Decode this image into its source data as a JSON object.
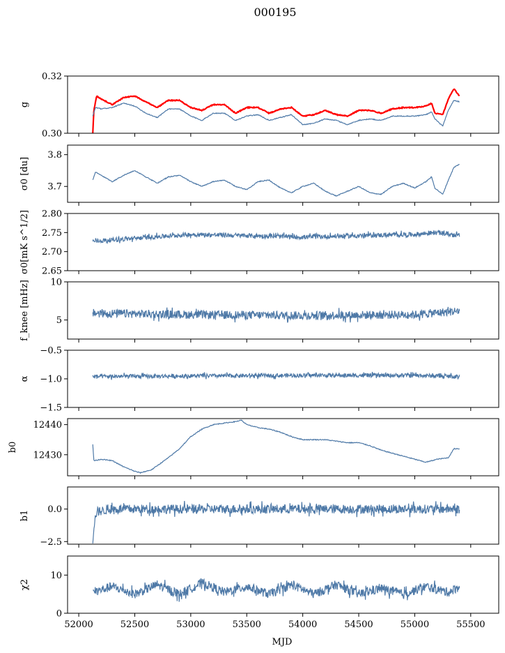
{
  "title": "000195",
  "chart_data": {
    "type": "line",
    "title": "000195",
    "xlabel": "MJD",
    "xlim": [
      51900,
      55750
    ],
    "xticks": [
      52000,
      52500,
      53000,
      53500,
      54000,
      54500,
      55000,
      55500
    ],
    "x_start": 52125,
    "x_end": 55400,
    "colors": {
      "series": "#4e79a7",
      "highlight": "#ff0000"
    },
    "panels": [
      {
        "id": "g",
        "ylabel": "g",
        "ylim": [
          0.3,
          0.32
        ],
        "yticks": [
          0.3,
          0.32
        ],
        "ytick_labels": [
          "0.30",
          "0.32"
        ],
        "series": [
          {
            "color": "#ff0000",
            "width": 2.2,
            "points": [
              [
                52125,
                0.3
              ],
              [
                52135,
                0.308
              ],
              [
                52160,
                0.313
              ],
              [
                52200,
                0.312
              ],
              [
                52300,
                0.31
              ],
              [
                52400,
                0.3125
              ],
              [
                52500,
                0.313
              ],
              [
                52600,
                0.311
              ],
              [
                52700,
                0.309
              ],
              [
                52800,
                0.3115
              ],
              [
                52900,
                0.3115
              ],
              [
                53000,
                0.309
              ],
              [
                53100,
                0.308
              ],
              [
                53200,
                0.31
              ],
              [
                53300,
                0.31
              ],
              [
                53400,
                0.307
              ],
              [
                53500,
                0.309
              ],
              [
                53600,
                0.309
              ],
              [
                53700,
                0.307
              ],
              [
                53800,
                0.3085
              ],
              [
                53900,
                0.309
              ],
              [
                54000,
                0.306
              ],
              [
                54100,
                0.3065
              ],
              [
                54200,
                0.308
              ],
              [
                54300,
                0.3065
              ],
              [
                54400,
                0.306
              ],
              [
                54500,
                0.308
              ],
              [
                54600,
                0.308
              ],
              [
                54700,
                0.307
              ],
              [
                54800,
                0.3085
              ],
              [
                54900,
                0.309
              ],
              [
                55000,
                0.309
              ],
              [
                55100,
                0.3095
              ],
              [
                55150,
                0.3105
              ],
              [
                55180,
                0.307
              ],
              [
                55250,
                0.3065
              ],
              [
                55300,
                0.312
              ],
              [
                55350,
                0.3155
              ],
              [
                55400,
                0.313
              ]
            ]
          },
          {
            "color": "#4e79a7",
            "width": 1.2,
            "points": [
              [
                52125,
                0.306
              ],
              [
                52150,
                0.309
              ],
              [
                52200,
                0.3085
              ],
              [
                52300,
                0.309
              ],
              [
                52400,
                0.3105
              ],
              [
                52500,
                0.3095
              ],
              [
                52600,
                0.307
              ],
              [
                52700,
                0.3055
              ],
              [
                52800,
                0.3085
              ],
              [
                52900,
                0.3085
              ],
              [
                53000,
                0.306
              ],
              [
                53100,
                0.3045
              ],
              [
                53200,
                0.307
              ],
              [
                53300,
                0.307
              ],
              [
                53400,
                0.3045
              ],
              [
                53500,
                0.306
              ],
              [
                53600,
                0.3065
              ],
              [
                53700,
                0.3045
              ],
              [
                53800,
                0.3055
              ],
              [
                53900,
                0.3065
              ],
              [
                54000,
                0.303
              ],
              [
                54100,
                0.3035
              ],
              [
                54200,
                0.305
              ],
              [
                54300,
                0.3045
              ],
              [
                54400,
                0.303
              ],
              [
                54500,
                0.3045
              ],
              [
                54600,
                0.305
              ],
              [
                54700,
                0.3045
              ],
              [
                54800,
                0.306
              ],
              [
                54900,
                0.306
              ],
              [
                55000,
                0.306
              ],
              [
                55100,
                0.3065
              ],
              [
                55150,
                0.3075
              ],
              [
                55180,
                0.305
              ],
              [
                55250,
                0.3025
              ],
              [
                55300,
                0.308
              ],
              [
                55350,
                0.3115
              ],
              [
                55400,
                0.311
              ]
            ]
          }
        ]
      },
      {
        "id": "sigma0_du",
        "ylabel": "σ0 [du]",
        "ylim": [
          3.65,
          3.83
        ],
        "yticks": [
          3.7,
          3.8
        ],
        "ytick_labels": [
          "3.7",
          "3.8"
        ],
        "series": [
          {
            "color": "#4e79a7",
            "width": 1.2,
            "points": [
              [
                52125,
                3.72
              ],
              [
                52150,
                3.745
              ],
              [
                52200,
                3.735
              ],
              [
                52300,
                3.715
              ],
              [
                52400,
                3.735
              ],
              [
                52500,
                3.75
              ],
              [
                52600,
                3.73
              ],
              [
                52700,
                3.71
              ],
              [
                52800,
                3.73
              ],
              [
                52900,
                3.735
              ],
              [
                53000,
                3.715
              ],
              [
                53100,
                3.7
              ],
              [
                53200,
                3.715
              ],
              [
                53300,
                3.72
              ],
              [
                53400,
                3.7
              ],
              [
                53500,
                3.69
              ],
              [
                53600,
                3.715
              ],
              [
                53700,
                3.72
              ],
              [
                53800,
                3.695
              ],
              [
                53900,
                3.68
              ],
              [
                54000,
                3.7
              ],
              [
                54100,
                3.71
              ],
              [
                54200,
                3.685
              ],
              [
                54300,
                3.67
              ],
              [
                54400,
                3.685
              ],
              [
                54500,
                3.7
              ],
              [
                54600,
                3.68
              ],
              [
                54700,
                3.675
              ],
              [
                54800,
                3.7
              ],
              [
                54900,
                3.71
              ],
              [
                55000,
                3.695
              ],
              [
                55100,
                3.715
              ],
              [
                55150,
                3.73
              ],
              [
                55180,
                3.695
              ],
              [
                55250,
                3.675
              ],
              [
                55300,
                3.72
              ],
              [
                55350,
                3.76
              ],
              [
                55400,
                3.77
              ]
            ]
          }
        ]
      },
      {
        "id": "sigma0_mK",
        "ylabel": "σ0[mK s^1/2]",
        "ylim": [
          2.65,
          2.8
        ],
        "yticks": [
          2.65,
          2.7,
          2.75,
          2.8
        ],
        "ytick_labels": [
          "2.65",
          "2.70",
          "2.75",
          "2.80"
        ],
        "series": [
          {
            "color": "#4e79a7",
            "width": 1.2,
            "mode": "noisy",
            "points": [
              [
                52125,
                2.727
              ],
              [
                52500,
                2.735
              ],
              [
                53000,
                2.745
              ],
              [
                53500,
                2.742
              ],
              [
                54000,
                2.738
              ],
              [
                54500,
                2.742
              ],
              [
                55000,
                2.745
              ],
              [
                55200,
                2.75
              ],
              [
                55400,
                2.742
              ]
            ],
            "noise": 0.006
          }
        ]
      },
      {
        "id": "fknee",
        "ylabel": "f_knee [mHz]",
        "ylim": [
          2.5,
          10
        ],
        "yticks": [
          5,
          10
        ],
        "ytick_labels": [
          "5",
          "10"
        ],
        "series": [
          {
            "color": "#4e79a7",
            "width": 1.2,
            "mode": "noisy",
            "points": [
              [
                52125,
                5.9
              ],
              [
                53000,
                5.7
              ],
              [
                54000,
                5.6
              ],
              [
                55000,
                5.7
              ],
              [
                55400,
                6.2
              ]
            ],
            "noise": 0.55
          }
        ]
      },
      {
        "id": "alpha",
        "ylabel": "α",
        "ylim": [
          -1.5,
          -0.5
        ],
        "yticks": [
          -1.5,
          -1.0,
          -0.5
        ],
        "ytick_labels": [
          "−1.5",
          "−1.0",
          "−0.5"
        ],
        "series": [
          {
            "color": "#4e79a7",
            "width": 1.2,
            "mode": "noisy",
            "points": [
              [
                52125,
                -0.96
              ],
              [
                53000,
                -0.95
              ],
              [
                54000,
                -0.94
              ],
              [
                55000,
                -0.94
              ],
              [
                55400,
                -0.96
              ]
            ],
            "noise": 0.035
          }
        ]
      },
      {
        "id": "b0",
        "ylabel": "b0",
        "ylim": [
          12423,
          12442
        ],
        "yticks": [
          12430,
          12440
        ],
        "ytick_labels": [
          "12430",
          "12440"
        ],
        "series": [
          {
            "color": "#4e79a7",
            "width": 1.2,
            "points": [
              [
                52125,
                12433.5
              ],
              [
                52135,
                12428
              ],
              [
                52200,
                12428.5
              ],
              [
                52300,
                12428
              ],
              [
                52400,
                12426
              ],
              [
                52500,
                12424.5
              ],
              [
                52550,
                12424
              ],
              [
                52650,
                12425
              ],
              [
                52800,
                12429
              ],
              [
                52900,
                12432
              ],
              [
                53000,
                12436
              ],
              [
                53100,
                12438.5
              ],
              [
                53200,
                12440
              ],
              [
                53300,
                12440.5
              ],
              [
                53400,
                12441
              ],
              [
                53450,
                12441.5
              ],
              [
                53500,
                12440
              ],
              [
                53600,
                12439
              ],
              [
                53700,
                12438.5
              ],
              [
                53800,
                12437.5
              ],
              [
                53900,
                12436
              ],
              [
                54000,
                12435
              ],
              [
                54100,
                12435
              ],
              [
                54200,
                12435
              ],
              [
                54300,
                12434.5
              ],
              [
                54400,
                12434
              ],
              [
                54500,
                12434
              ],
              [
                54600,
                12433
              ],
              [
                54700,
                12431.5
              ],
              [
                54800,
                12430.5
              ],
              [
                54900,
                12429.5
              ],
              [
                55000,
                12428.5
              ],
              [
                55100,
                12427.5
              ],
              [
                55200,
                12428.5
              ],
              [
                55300,
                12429
              ],
              [
                55350,
                12432
              ],
              [
                55400,
                12432
              ]
            ]
          }
        ]
      },
      {
        "id": "b1",
        "ylabel": "b1",
        "ylim": [
          -2.7,
          1.7
        ],
        "yticks": [
          -2.5,
          0.0
        ],
        "ytick_labels": [
          "−2.5",
          "0.0"
        ],
        "series": [
          {
            "color": "#4e79a7",
            "width": 1.2,
            "mode": "noisy",
            "points": [
              [
                52125,
                -2.4
              ],
              [
                52140,
                -1.0
              ],
              [
                52160,
                -0.2
              ],
              [
                52300,
                0.0
              ],
              [
                53000,
                0.0
              ],
              [
                54000,
                0.0
              ],
              [
                55000,
                0.0
              ],
              [
                55400,
                0.0
              ]
            ],
            "noise": 0.35
          }
        ]
      },
      {
        "id": "chi2",
        "ylabel": "χ2",
        "ylim": [
          0,
          15
        ],
        "yticks": [
          0,
          10
        ],
        "ytick_labels": [
          "0",
          "10"
        ],
        "series": [
          {
            "color": "#4e79a7",
            "width": 1.2,
            "mode": "noisy",
            "points": [
              [
                52125,
                5.5
              ],
              [
                52300,
                7.0
              ],
              [
                52500,
                5.0
              ],
              [
                52700,
                7.5
              ],
              [
                52900,
                5.0
              ],
              [
                53100,
                8.0
              ],
              [
                53300,
                5.5
              ],
              [
                53500,
                7.0
              ],
              [
                53700,
                5.0
              ],
              [
                53900,
                7.5
              ],
              [
                54100,
                5.0
              ],
              [
                54300,
                7.5
              ],
              [
                54500,
                5.0
              ],
              [
                54700,
                6.5
              ],
              [
                54900,
                5.0
              ],
              [
                55100,
                7.0
              ],
              [
                55300,
                5.5
              ],
              [
                55400,
                7.0
              ]
            ],
            "noise": 1.2
          }
        ]
      }
    ]
  }
}
